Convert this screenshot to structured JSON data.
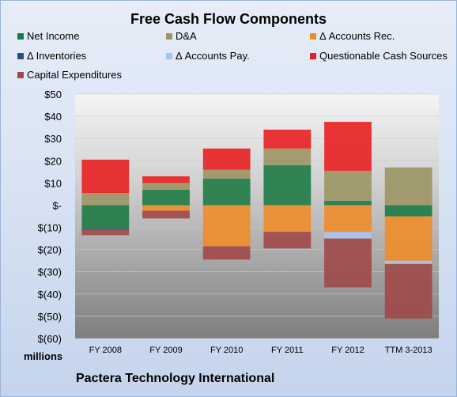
{
  "chart_data": {
    "type": "bar",
    "stacked": true,
    "title": "Free Cash Flow Components",
    "categories": [
      "FY 2008",
      "FY 2009",
      "FY 2010",
      "FY 2011",
      "FY 2012",
      "TTM 3-2013"
    ],
    "ylim": [
      -60,
      50
    ],
    "yticks": [
      50,
      40,
      30,
      20,
      10,
      0,
      -10,
      -20,
      -30,
      -40,
      -50,
      -60
    ],
    "ytick_labels": [
      "$50",
      "$40",
      "$30",
      "$20",
      "$10",
      "$-",
      "$(10)",
      "$(20)",
      "$(30)",
      "$(40)",
      "$(50)",
      "$(60)"
    ],
    "units_label": "millions",
    "legend_position": "top",
    "series": [
      {
        "name": "Net Income",
        "color": "#1e7a45",
        "values": [
          -10.5,
          7,
          12,
          18,
          2,
          -5
        ]
      },
      {
        "name": "D&A",
        "color": "#9c9564",
        "values": [
          5.5,
          3,
          4,
          7.5,
          13.5,
          17
        ]
      },
      {
        "name": "Δ Accounts Rec.",
        "color": "#f08c2a",
        "values": [
          0,
          -2.5,
          -18.5,
          -12,
          -12,
          -20
        ]
      },
      {
        "name": "Δ Inventories",
        "color": "#2e4f7a",
        "values": [
          -0.5,
          0,
          0,
          0,
          0,
          0
        ]
      },
      {
        "name": "Δ Accounts Pay.",
        "color": "#a9c4e8",
        "values": [
          0,
          0,
          0,
          0,
          -3,
          -1.5
        ]
      },
      {
        "name": "Questionable Cash Sources",
        "color": "#e82020",
        "values": [
          15,
          3,
          9.5,
          8.5,
          22,
          0
        ]
      },
      {
        "name": "Capital Expenditures",
        "color": "#a04848",
        "values": [
          -2.5,
          -3.5,
          -6,
          -7.5,
          -22,
          -24.5
        ]
      }
    ]
  },
  "footer": {
    "company": "Pactera Technology International"
  }
}
